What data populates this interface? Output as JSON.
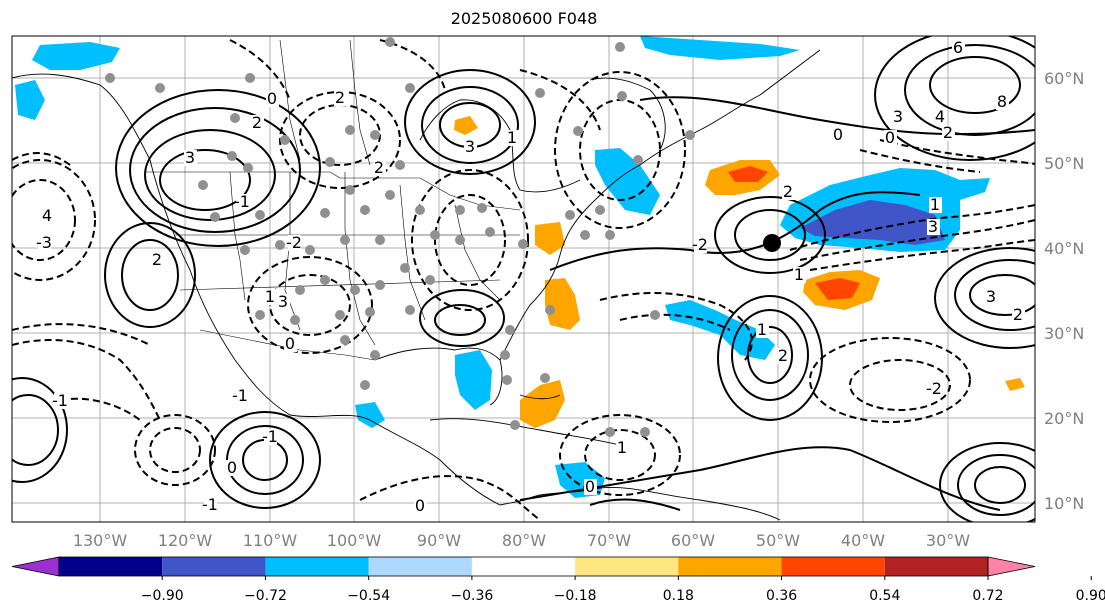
{
  "title": "2025080600 F048",
  "lon_labels": [
    "130°W",
    "120°W",
    "110°W",
    "100°W",
    "90°W",
    "80°W",
    "70°W",
    "60°W",
    "50°W",
    "40°W",
    "30°W"
  ],
  "lat_labels": [
    "60°N",
    "50°N",
    "40°N",
    "30°N",
    "20°N",
    "10°N"
  ],
  "colorbar": {
    "ticks": [
      "−0.90",
      "−0.72",
      "−0.54",
      "−0.36",
      "−0.18",
      "0.18",
      "0.36",
      "0.54",
      "0.72",
      "0.90"
    ],
    "colors": [
      "#9b30d0",
      "#00008b",
      "#4055c8",
      "#00bfff",
      "#add8ff",
      "#ffffff",
      "#ffe680",
      "#ffa500",
      "#ff4500",
      "#b22222",
      "#ff82ab"
    ]
  },
  "contour_labels": [
    "6",
    "8",
    "3",
    "4",
    "2",
    "1",
    "3",
    "0",
    "2",
    "3",
    "-1",
    "4",
    "-3",
    "2",
    "-2",
    "1",
    "0",
    "3",
    "0",
    "2",
    "2",
    "3",
    "1",
    "-1",
    "-1",
    "-2",
    "1",
    "0",
    "-1",
    "0",
    "-1",
    "1",
    "2",
    "2",
    "1",
    "0",
    "3",
    "2",
    "0",
    "-2"
  ],
  "marker_label": ""
}
